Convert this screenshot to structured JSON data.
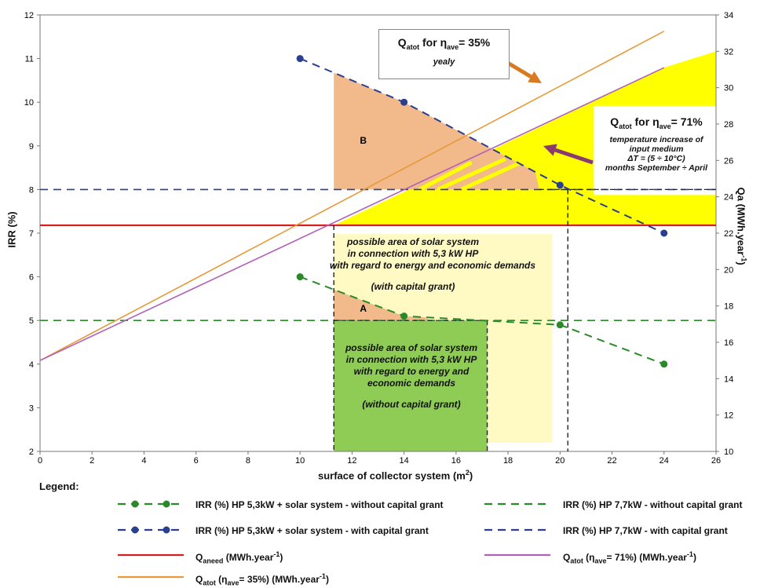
{
  "chart_data": {
    "type": "line",
    "xlabel": "surface of collector system (m",
    "xlabel_sup": "2",
    "xlabel_end": ")",
    "ylabel_left": "IRR (%)",
    "ylabel_right": "Qa (MWh.year",
    "ylabel_right_sup": "-1",
    "ylabel_right_end": ")",
    "xlim": [
      0,
      26
    ],
    "ylim_left": [
      2,
      12
    ],
    "ylim_right": [
      10,
      34
    ],
    "x_ticks": [
      "0",
      "2",
      "4",
      "6",
      "8",
      "10",
      "12",
      "14",
      "16",
      "18",
      "20",
      "22",
      "24",
      "26"
    ],
    "y_left_ticks": [
      "2",
      "3",
      "4",
      "5",
      "6",
      "7",
      "8",
      "9",
      "10",
      "11",
      "12"
    ],
    "y_right_ticks": [
      "10",
      "12",
      "14",
      "16",
      "18",
      "20",
      "22",
      "24",
      "26",
      "28",
      "30",
      "32",
      "34"
    ],
    "colors": {
      "green": "#2a8a2a",
      "blue": "#2a3f8f",
      "red": "#d62020",
      "violet": "#b060b8",
      "orange": "#e89a3a",
      "yellow": "#ffff00",
      "salmon": "#f2b98a",
      "pale_yellow": "#fff9c4",
      "light_green": "#8fcc55"
    },
    "series": [
      {
        "name": "IRR (%) HP 5,3kW + solar system - without capital grant",
        "axis": "left",
        "style": "dashed-markers",
        "color": "#2a8a2a",
        "x": [
          10,
          14,
          20,
          24
        ],
        "y": [
          6.0,
          5.1,
          4.9,
          4.0
        ]
      },
      {
        "name": "IRR (%) HP 5,3kW + solar system  - with capital grant",
        "axis": "left",
        "style": "dashed-markers",
        "color": "#2a3f8f",
        "x": [
          10,
          14,
          20,
          24
        ],
        "y": [
          11.0,
          10.0,
          8.1,
          7.0
        ]
      },
      {
        "name": "IRR (%) HP 7,7kW - without capital grant",
        "axis": "left",
        "style": "dashed",
        "color": "#2a8a2a",
        "x": [
          0,
          26
        ],
        "y": [
          5.0,
          5.0
        ]
      },
      {
        "name": "IRR (%) HP 7,7kW - with capital grant",
        "axis": "left",
        "style": "dashed",
        "color": "#2a3f8f",
        "x": [
          0,
          26
        ],
        "y": [
          8.0,
          8.0
        ]
      },
      {
        "name": "Q_aneed (MWh.year-1)",
        "axis": "left",
        "style": "solid",
        "color": "#d62020",
        "x": [
          0,
          26
        ],
        "y": [
          7.18,
          7.18
        ]
      },
      {
        "name": "Q_atot (η = 71%) (MWh.year-1)",
        "axis": "right",
        "style": "solid",
        "color": "#b060b8",
        "x": [
          0,
          24
        ],
        "y": [
          15.0,
          31.1
        ]
      },
      {
        "name": "Q_atot (η = 35%) (MWh.year-1)",
        "axis": "right",
        "style": "solid",
        "color": "#e89a3a",
        "x": [
          0,
          24
        ],
        "y": [
          15.0,
          33.1
        ]
      }
    ],
    "annotations": {
      "label_A": "A",
      "label_B": "B"
    }
  },
  "box35": {
    "q": "Q",
    "q_sub": "atot",
    "for": " for η",
    "eta_sub": "ave",
    "pct": "= 35%",
    "note": "yealy"
  },
  "box71": {
    "q": "Q",
    "q_sub": "atot",
    "for": "  for η",
    "eta_sub": "ave",
    "pct": "= 71%",
    "l1": "temperature increase of",
    "l2": "input  medium",
    "l3": "ΔT = (5 ÷ 10°C)",
    "l4": "months  September ÷ April"
  },
  "note_grant": {
    "l1": "possible area of solar system",
    "l2": "in connection with 5,3 kW HP",
    "l3": "with regard to energy and economic demands",
    "l4": "(with capital grant)"
  },
  "note_nogrant": {
    "l1": "possible area of solar system",
    "l2": "in connection with 5,3 kW HP",
    "l3": "with regard to energy and",
    "l4": "economic demands",
    "l5": "(without capital grant)"
  },
  "legend": {
    "title": "Legend:",
    "items": [
      {
        "label": "IRR (%) HP 5,3kW + solar system - without capital grant"
      },
      {
        "label": "IRR (%) HP 7,7kW - without capital grant"
      },
      {
        "label": "IRR (%) HP 5,3kW + solar system  - with capital grant"
      },
      {
        "label": "IRR (%) HP 7,7kW - with capital grant"
      },
      {
        "q": "Q",
        "sub": "aneed",
        "rest": " (MWh.year",
        "sup": "-1",
        "end": ")"
      },
      {
        "q": "Q",
        "sub": "atot",
        "rest": " (η",
        "sub2": "ave",
        "rest2": "= 71%) (MWh.year",
        "sup": "-1",
        "end": ")"
      },
      {
        "q": "Q",
        "sub": "atot",
        "rest": " (η",
        "sub2": "ave",
        "rest2": "= 35%) (MWh.year",
        "sup": "-1",
        "end": ")"
      }
    ]
  }
}
